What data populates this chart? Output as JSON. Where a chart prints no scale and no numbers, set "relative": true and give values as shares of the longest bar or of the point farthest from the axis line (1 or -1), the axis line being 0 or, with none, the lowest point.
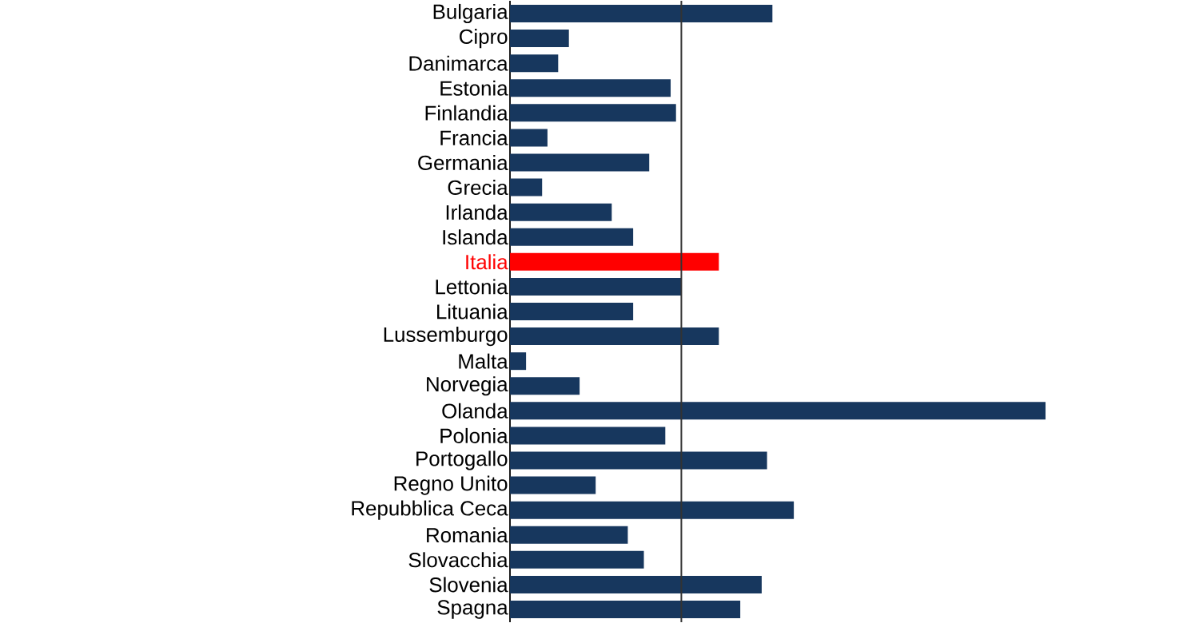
{
  "chart_data": {
    "type": "bar",
    "orientation": "horizontal",
    "relative": true,
    "categories": [
      "Bulgaria",
      "Cipro",
      "Danimarca",
      "Estonia",
      "Finlandia",
      "Francia",
      "Germania",
      "Grecia",
      "Irlanda",
      "Islanda",
      "Italia",
      "Lettonia",
      "Lituania",
      "Lussemburgo",
      "Malta",
      "Norvegia",
      "Olanda",
      "Polonia",
      "Portogallo",
      "Regno Unito",
      "Repubblica Ceca",
      "Romania",
      "Slovacchia",
      "Slovenia",
      "Spagna"
    ],
    "values": [
      0.49,
      0.11,
      0.09,
      0.3,
      0.31,
      0.07,
      0.26,
      0.06,
      0.19,
      0.23,
      0.39,
      0.32,
      0.23,
      0.39,
      0.03,
      0.13,
      1,
      0.29,
      0.48,
      0.16,
      0.53,
      0.22,
      0.25,
      0.47,
      0.43
    ],
    "color": "#17375e",
    "colors": [
      "#17375e",
      "#17375e",
      "#17375e",
      "#17375e",
      "#17375e",
      "#17375e",
      "#17375e",
      "#17375e",
      "#17375e",
      "#17375e",
      "#ff0000",
      "#17375e",
      "#17375e",
      "#17375e",
      "#17375e",
      "#17375e",
      "#17375e",
      "#17375e",
      "#17375e",
      "#17375e",
      "#17375e",
      "#17375e",
      "#17375e",
      "#17375e",
      "#17375e"
    ],
    "ref_lines": [
      {
        "axis": "x",
        "value": 0.32,
        "color": "#333333"
      }
    ]
  }
}
